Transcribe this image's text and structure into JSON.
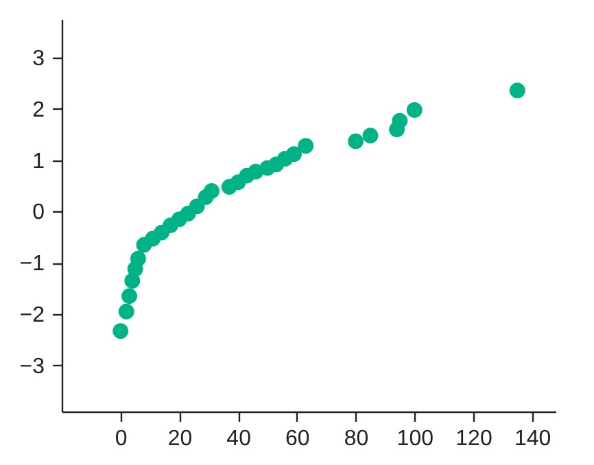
{
  "chart_data": {
    "type": "scatter",
    "marker": "circle",
    "grid": false,
    "x": [
      0,
      2,
      3,
      4,
      5,
      6,
      8,
      11,
      14,
      17,
      20,
      23,
      26,
      29,
      31,
      37,
      40,
      43,
      46,
      50,
      53,
      56,
      59,
      63,
      80,
      85,
      94,
      95,
      100,
      135
    ],
    "series": [
      {
        "color": "#00b386",
        "values": [
          -2.33,
          -1.95,
          -1.65,
          -1.35,
          -1.12,
          -0.92,
          -0.65,
          -0.53,
          -0.41,
          -0.27,
          -0.15,
          -0.04,
          0.1,
          0.28,
          0.4,
          0.48,
          0.57,
          0.7,
          0.78,
          0.85,
          0.92,
          1.03,
          1.12,
          1.28,
          1.37,
          1.48,
          1.6,
          1.77,
          1.98,
          2.36
        ]
      }
    ],
    "xlim": [
      -20,
      148
    ],
    "ylim": [
      -3.9,
      3.75
    ],
    "xticks": [
      0,
      20,
      40,
      60,
      80,
      100,
      120,
      140
    ],
    "yticks": [
      -3,
      -2,
      -1,
      0,
      1,
      2,
      3
    ]
  }
}
